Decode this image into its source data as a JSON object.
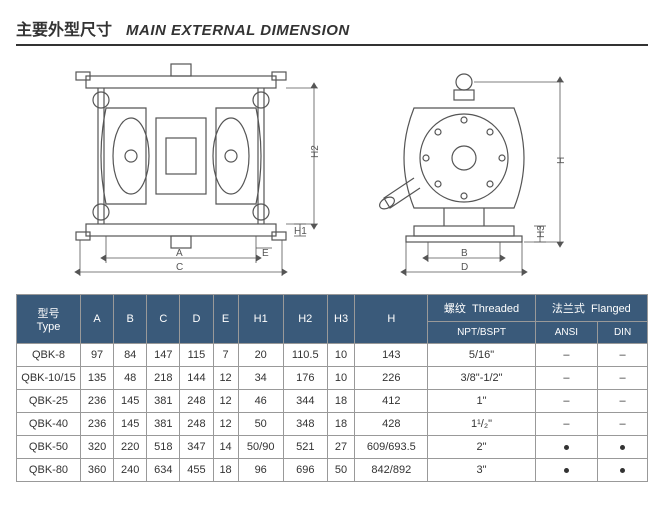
{
  "title": {
    "cn": "主要外型尺寸",
    "en": "MAIN EXTERNAL DIMENSION"
  },
  "drawing_labels": {
    "A": "A",
    "B": "B",
    "C": "C",
    "D": "D",
    "E": "E",
    "H": "H",
    "H1": "H1",
    "H2": "H2",
    "H3": "H3"
  },
  "table": {
    "header": {
      "type_cn": "型号",
      "type_en": "Type",
      "A": "A",
      "B": "B",
      "C": "C",
      "D": "D",
      "E": "E",
      "H1": "H1",
      "H2": "H2",
      "H3": "H3",
      "H": "H",
      "threaded_cn": "螺纹",
      "threaded_en": "Threaded",
      "threaded_sub": "NPT/BSPT",
      "flanged_cn": "法兰式",
      "flanged_en": "Flanged",
      "ansi": "ANSI",
      "din": "DIN"
    },
    "rows": [
      {
        "type": "QBK-8",
        "A": "97",
        "B": "84",
        "C": "147",
        "D": "115",
        "E": "7",
        "H1": "20",
        "H2": "110.5",
        "H3": "10",
        "H": "143",
        "npt": "5/16\"",
        "ansi": "–",
        "din": "–"
      },
      {
        "type": "QBK-10/15",
        "A": "135",
        "B": "48",
        "C": "218",
        "D": "144",
        "E": "12",
        "H1": "34",
        "H2": "176",
        "H3": "10",
        "H": "226",
        "npt": "3/8\"-1/2\"",
        "ansi": "–",
        "din": "–"
      },
      {
        "type": "QBK-25",
        "A": "236",
        "B": "145",
        "C": "381",
        "D": "248",
        "E": "12",
        "H1": "46",
        "H2": "344",
        "H3": "18",
        "H": "412",
        "npt": "1\"",
        "ansi": "–",
        "din": "–"
      },
      {
        "type": "QBK-40",
        "A": "236",
        "B": "145",
        "C": "381",
        "D": "248",
        "E": "12",
        "H1": "50",
        "H2": "348",
        "H3": "18",
        "H": "428",
        "npt": "1¹/₂\"",
        "ansi": "–",
        "din": "–"
      },
      {
        "type": "QBK-50",
        "A": "320",
        "B": "220",
        "C": "518",
        "D": "347",
        "E": "14",
        "H1": "50/90",
        "H2": "521",
        "H3": "27",
        "H": "609/693.5",
        "npt": "2\"",
        "ansi": "●",
        "din": "●"
      },
      {
        "type": "QBK-80",
        "A": "360",
        "B": "240",
        "C": "634",
        "D": "455",
        "E": "18",
        "H1": "96",
        "H2": "696",
        "H3": "50",
        "H": "842/892",
        "npt": "3\"",
        "ansi": "●",
        "din": "●"
      }
    ]
  },
  "colors": {
    "header_bg": "#3a5a7a",
    "header_fg": "#ffffff",
    "border": "#999999"
  }
}
